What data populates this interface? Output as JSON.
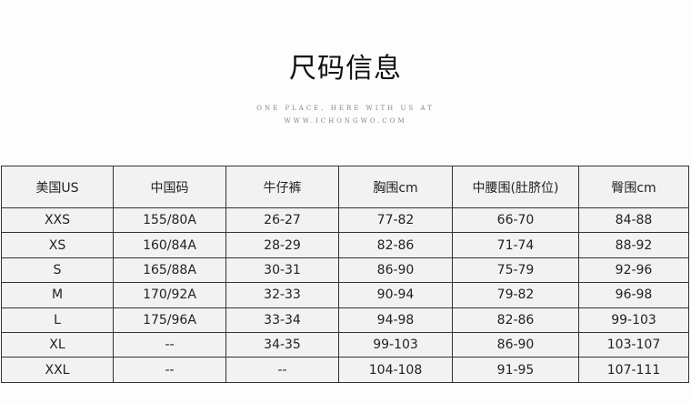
{
  "title": "尺码信息",
  "subtitle_line1": "ONE PLACE, HERE WITH US AT",
  "subtitle_line2": "WWW.ICHONGWO.COM",
  "table": {
    "headers": [
      "美国US",
      "中国码",
      "牛仔裤",
      "胸围cm",
      "中腰围(肚脐位)",
      "臀围cm"
    ],
    "rows": [
      [
        "XXS",
        "155/80A",
        "26-27",
        "77-82",
        "66-70",
        "84-88"
      ],
      [
        "XS",
        "160/84A",
        "28-29",
        "82-86",
        "71-74",
        "88-92"
      ],
      [
        "S",
        "165/88A",
        "30-31",
        "86-90",
        "75-79",
        "92-96"
      ],
      [
        "M",
        "170/92A",
        "32-33",
        "90-94",
        "79-82",
        "96-98"
      ],
      [
        "L",
        "175/96A",
        "33-34",
        "94-98",
        "82-86",
        "99-103"
      ],
      [
        "XL",
        "--",
        "34-35",
        "99-103",
        "86-90",
        "103-107"
      ],
      [
        "XXL",
        "--",
        "--",
        "104-108",
        "91-95",
        "107-111"
      ]
    ]
  }
}
